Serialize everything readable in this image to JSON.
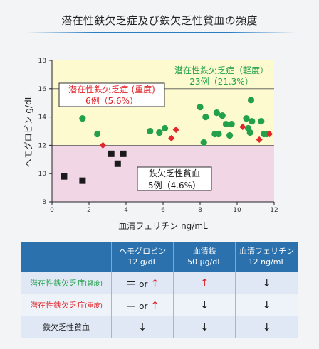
{
  "title": "潜在性鉄欠乏症及び鉄欠乏性貧血の頻度",
  "colors": {
    "green": "#22a14a",
    "red": "#e0262b",
    "black": "#1a1a1a",
    "yellow_band": "#fdfad0",
    "pink_band": "#f1d6e6",
    "header_blue": "#2a71ad"
  },
  "chart_data": {
    "type": "scatter",
    "xlabel": "血清フェリチン ng/mL",
    "ylabel": "ヘモグロビン g/dL",
    "xlim": [
      0,
      12
    ],
    "ylim": [
      8,
      18
    ],
    "xticks": [
      0,
      2,
      4,
      6,
      8,
      10,
      12
    ],
    "yticks": [
      8,
      10,
      12,
      14,
      16,
      18
    ],
    "bands": [
      {
        "y_from": 12,
        "y_to": 18,
        "color": "#fdfad0"
      },
      {
        "y_from": 8,
        "y_to": 12,
        "color": "#f1d6e6"
      }
    ],
    "reference_lines": {
      "y": [
        12,
        16
      ]
    },
    "series": [
      {
        "group": "latent_mild",
        "marker": "circle",
        "color": "#22a14a",
        "points": [
          [
            1.65,
            13.9
          ],
          [
            2.45,
            12.8
          ],
          [
            5.3,
            13.0
          ],
          [
            5.8,
            12.9
          ],
          [
            6.1,
            13.2
          ],
          [
            8.0,
            14.7
          ],
          [
            8.2,
            12.2
          ],
          [
            8.3,
            14.0
          ],
          [
            8.8,
            12.8
          ],
          [
            8.9,
            14.3
          ],
          [
            9.0,
            12.8
          ],
          [
            9.2,
            14.1
          ],
          [
            9.4,
            13.5
          ],
          [
            9.6,
            12.7
          ],
          [
            9.7,
            13.5
          ],
          [
            10.5,
            13.9
          ],
          [
            10.6,
            13.2
          ],
          [
            10.7,
            12.9
          ],
          [
            10.75,
            15.2
          ],
          [
            10.8,
            13.7
          ],
          [
            11.3,
            13.7
          ],
          [
            11.45,
            12.8
          ],
          [
            11.6,
            12.8
          ]
        ]
      },
      {
        "group": "latent_severe",
        "marker": "diamond",
        "color": "#e0262b",
        "points": [
          [
            2.75,
            12.0
          ],
          [
            6.45,
            12.5
          ],
          [
            6.7,
            13.1
          ],
          [
            10.3,
            13.3
          ],
          [
            11.2,
            12.4
          ],
          [
            11.75,
            12.8
          ]
        ]
      },
      {
        "group": "ida",
        "marker": "square",
        "color": "#1a1a1a",
        "points": [
          [
            0.65,
            9.8
          ],
          [
            1.65,
            9.5
          ],
          [
            3.2,
            11.4
          ],
          [
            3.55,
            10.7
          ],
          [
            3.85,
            11.4
          ]
        ]
      }
    ],
    "annotations": [
      {
        "group": "latent_mild",
        "line1": "潜在性鉄欠乏症（軽度）",
        "line2": "23例（21.3%）",
        "color": "#22a14a"
      },
      {
        "group": "latent_severe",
        "line1": "潜在性鉄欠乏症-(重度)",
        "line2": "6例（5.6%）",
        "color": "#e0262b"
      },
      {
        "group": "ida",
        "line1": "鉄欠乏性貧血",
        "line2": "5例（4.6%）",
        "color": "#1a1a1a"
      }
    ]
  },
  "table": {
    "headers": [
      "",
      "ヘモグロビン\n12 g/dL",
      "血清鉄\n50 μg/dL",
      "血清フェリチン\n12 ng/mL"
    ],
    "rows": [
      {
        "label": "潜在性鉄欠乏症",
        "sub": "(軽度)",
        "label_color": "#22a14a",
        "hb": "＝ or ↑",
        "iron": "↑",
        "ferritin": "↓"
      },
      {
        "label": "潜在性鉄欠乏症",
        "sub": "(重度)",
        "label_color": "#e0262b",
        "hb": "＝ or ↑",
        "iron": "↓",
        "ferritin": "↓"
      },
      {
        "label": "鉄欠乏性貧血",
        "sub": "",
        "label_color": "#222222",
        "hb": "↓",
        "iron": "↓",
        "ferritin": "↓"
      }
    ]
  }
}
